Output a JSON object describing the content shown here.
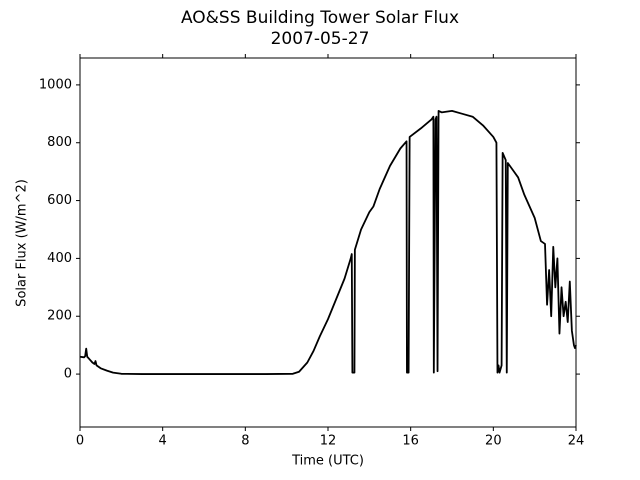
{
  "chart_data": {
    "type": "line",
    "title": "AO&SS Building Tower Solar Flux",
    "subtitle": "2007-05-27",
    "xlabel": "Time (UTC)",
    "ylabel": "Solar Flux (W/m^2)",
    "x": [
      0,
      0.2,
      0.25,
      0.3,
      0.35,
      0.5,
      0.6,
      0.7,
      0.75,
      0.8,
      1.0,
      1.3,
      1.6,
      2.0,
      3,
      6,
      9,
      10.3,
      10.6,
      11,
      11.3,
      11.6,
      12,
      12.4,
      12.8,
      13.1,
      13.15,
      13.18,
      13.28,
      13.3,
      13.6,
      14,
      14.2,
      14.5,
      15,
      15.5,
      15.8,
      15.82,
      15.9,
      15.95,
      16.5,
      17,
      17.1,
      17.12,
      17.2,
      17.25,
      17.3,
      17.35,
      17.5,
      18,
      18.5,
      19,
      19.5,
      20,
      20.15,
      20.2,
      20.25,
      20.3,
      20.4,
      20.45,
      20.6,
      20.65,
      20.7,
      21,
      21.2,
      21.5,
      22,
      22.3,
      22.5,
      22.6,
      22.7,
      22.8,
      22.9,
      23,
      23.1,
      23.2,
      23.3,
      23.4,
      23.5,
      23.6,
      23.7,
      23.8,
      23.9,
      23.95,
      24
    ],
    "series": [
      {
        "name": "Solar Flux",
        "color": "#000000",
        "values": [
          60,
          58,
          62,
          88,
          60,
          48,
          40,
          35,
          45,
          30,
          20,
          12,
          5,
          1,
          0,
          0,
          0,
          1,
          8,
          40,
          80,
          130,
          190,
          260,
          330,
          400,
          415,
          5,
          5,
          430,
          500,
          560,
          580,
          640,
          720,
          780,
          805,
          5,
          5,
          820,
          850,
          880,
          890,
          5,
          880,
          890,
          10,
          910,
          905,
          910,
          900,
          890,
          860,
          820,
          800,
          5,
          30,
          5,
          30,
          765,
          740,
          5,
          730,
          700,
          680,
          620,
          540,
          460,
          450,
          240,
          360,
          200,
          440,
          300,
          400,
          140,
          300,
          200,
          250,
          180,
          320,
          150,
          100,
          90,
          100
        ]
      }
    ],
    "xlim": [
      0,
      24
    ],
    "xticks": [
      0,
      4,
      8,
      12,
      16,
      20,
      24
    ],
    "ylim": [
      -183,
      1093
    ],
    "yticks": [
      0,
      200,
      400,
      600,
      800,
      1000
    ],
    "grid": false
  }
}
